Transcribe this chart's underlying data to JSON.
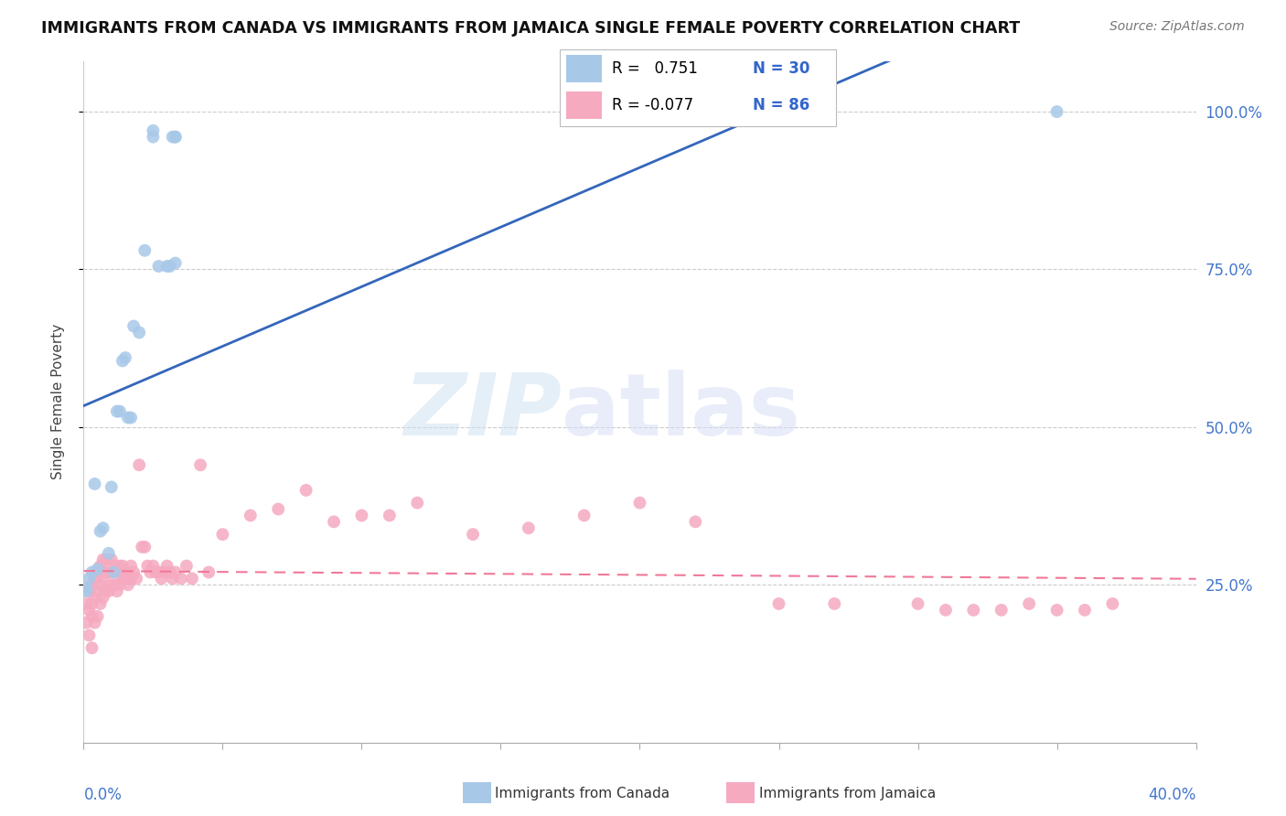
{
  "title": "IMMIGRANTS FROM CANADA VS IMMIGRANTS FROM JAMAICA SINGLE FEMALE POVERTY CORRELATION CHART",
  "source": "Source: ZipAtlas.com",
  "ylabel": "Single Female Poverty",
  "canada_color": "#a8c8e8",
  "jamaica_color": "#f5aac0",
  "canada_line_color": "#3366bb",
  "jamaica_line_color": "#f07898",
  "legend_R1": "R =   0.751",
  "legend_N1": "N = 30",
  "legend_R2": "R = -0.077",
  "legend_N2": "N = 86",
  "legend_label1": "Immigrants from Canada",
  "legend_label2": "Immigrants from Jamaica",
  "xlim": [
    0.0,
    0.4
  ],
  "ylim": [
    0.0,
    1.08
  ],
  "canada_x": [
    0.001,
    0.001,
    0.002,
    0.003,
    0.004,
    0.005,
    0.006,
    0.007,
    0.009,
    0.01,
    0.011,
    0.012,
    0.013,
    0.014,
    0.015,
    0.016,
    0.017,
    0.018,
    0.02,
    0.022,
    0.025,
    0.025,
    0.027,
    0.03,
    0.031,
    0.032,
    0.033,
    0.033,
    0.033,
    0.35
  ],
  "canada_y": [
    0.245,
    0.24,
    0.26,
    0.27,
    0.41,
    0.275,
    0.335,
    0.34,
    0.3,
    0.405,
    0.27,
    0.525,
    0.525,
    0.605,
    0.61,
    0.515,
    0.515,
    0.66,
    0.65,
    0.78,
    0.96,
    0.97,
    0.755,
    0.755,
    0.755,
    0.96,
    0.96,
    0.96,
    0.76,
    1.0
  ],
  "jamaica_x": [
    0.001,
    0.001,
    0.002,
    0.002,
    0.002,
    0.003,
    0.003,
    0.003,
    0.003,
    0.004,
    0.004,
    0.004,
    0.005,
    0.005,
    0.005,
    0.006,
    0.006,
    0.006,
    0.007,
    0.007,
    0.007,
    0.008,
    0.008,
    0.008,
    0.009,
    0.009,
    0.01,
    0.01,
    0.01,
    0.011,
    0.011,
    0.012,
    0.012,
    0.013,
    0.013,
    0.014,
    0.014,
    0.015,
    0.016,
    0.016,
    0.017,
    0.017,
    0.018,
    0.019,
    0.02,
    0.021,
    0.022,
    0.023,
    0.024,
    0.025,
    0.026,
    0.027,
    0.028,
    0.029,
    0.03,
    0.031,
    0.032,
    0.033,
    0.035,
    0.037,
    0.039,
    0.042,
    0.045,
    0.05,
    0.06,
    0.07,
    0.08,
    0.09,
    0.1,
    0.11,
    0.12,
    0.14,
    0.16,
    0.18,
    0.2,
    0.22,
    0.25,
    0.27,
    0.3,
    0.31,
    0.32,
    0.33,
    0.34,
    0.35,
    0.36,
    0.37
  ],
  "jamaica_y": [
    0.19,
    0.22,
    0.17,
    0.21,
    0.24,
    0.15,
    0.2,
    0.22,
    0.25,
    0.19,
    0.23,
    0.26,
    0.2,
    0.24,
    0.27,
    0.22,
    0.25,
    0.28,
    0.23,
    0.26,
    0.29,
    0.24,
    0.27,
    0.29,
    0.24,
    0.27,
    0.25,
    0.27,
    0.29,
    0.25,
    0.28,
    0.24,
    0.27,
    0.25,
    0.28,
    0.26,
    0.28,
    0.26,
    0.25,
    0.27,
    0.26,
    0.28,
    0.27,
    0.26,
    0.44,
    0.31,
    0.31,
    0.28,
    0.27,
    0.28,
    0.27,
    0.27,
    0.26,
    0.27,
    0.28,
    0.27,
    0.26,
    0.27,
    0.26,
    0.28,
    0.26,
    0.44,
    0.27,
    0.33,
    0.36,
    0.37,
    0.4,
    0.35,
    0.36,
    0.36,
    0.38,
    0.33,
    0.34,
    0.36,
    0.38,
    0.35,
    0.22,
    0.22,
    0.22,
    0.21,
    0.21,
    0.21,
    0.22,
    0.21,
    0.21,
    0.22
  ]
}
